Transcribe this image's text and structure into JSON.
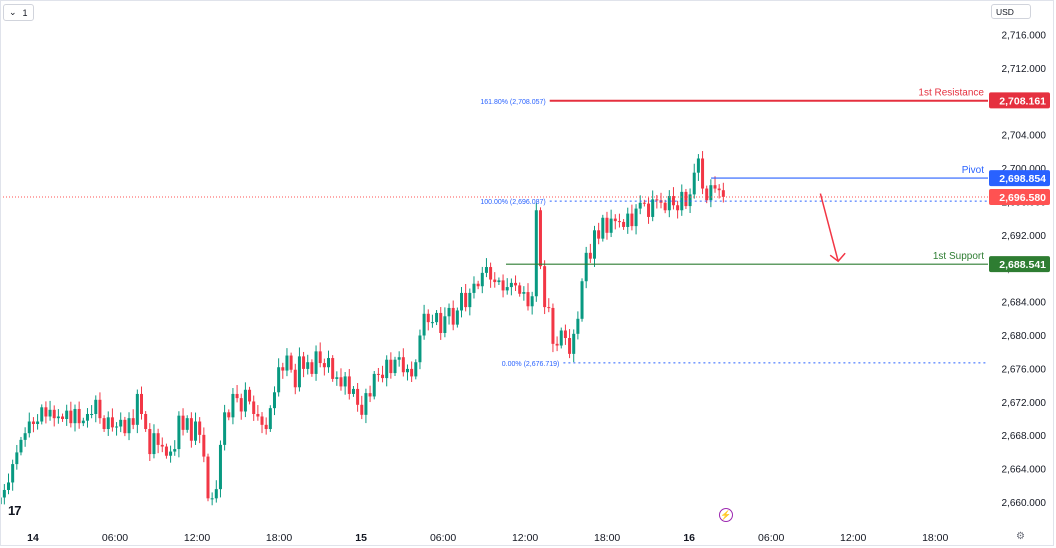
{
  "header": {
    "interval_label": "1",
    "currency": "USD"
  },
  "colors": {
    "up": "#089981",
    "down": "#f23645",
    "resistance": "#e5303f",
    "pivot": "#2962ff",
    "support": "#2e7d32",
    "last_price": "#ff5252",
    "fib": "#2962ff",
    "axis_text": "#131722",
    "arrow": "#f23645"
  },
  "icons": {
    "chevron": "chevron-down-icon",
    "logo": "tradingview-logo-icon",
    "bolt": "lightning-icon",
    "settings": "gear-icon"
  },
  "footer": {
    "logo_text": "17"
  },
  "chart_data": {
    "type": "candlestick",
    "title": "",
    "grid": false,
    "ylim": [
      2658.0,
      2718.8
    ],
    "y_ticks": [
      "2,660.000",
      "2,664.000",
      "2,668.000",
      "2,672.000",
      "2,676.000",
      "2,680.000",
      "2,684.000",
      "2,688.000",
      "2,692.000",
      "2,696.000",
      "2,700.000",
      "2,704.000",
      "2,708.000",
      "2,712.000",
      "2,716.000"
    ],
    "y_tick_values": [
      2660,
      2664,
      2668,
      2672,
      2676,
      2680,
      2684,
      2688,
      2692,
      2696,
      2700,
      2704,
      2708,
      2712,
      2716
    ],
    "x_ticks": [
      {
        "label": "14",
        "bold": true,
        "hours": 0
      },
      {
        "label": "06:00",
        "bold": false,
        "hours": 6
      },
      {
        "label": "12:00",
        "bold": false,
        "hours": 12
      },
      {
        "label": "18:00",
        "bold": false,
        "hours": 18
      },
      {
        "label": "15",
        "bold": true,
        "hours": 24
      },
      {
        "label": "06:00",
        "bold": false,
        "hours": 30
      },
      {
        "label": "12:00",
        "bold": false,
        "hours": 36
      },
      {
        "label": "18:00",
        "bold": false,
        "hours": 42
      },
      {
        "label": "16",
        "bold": true,
        "hours": 48
      },
      {
        "label": "06:00",
        "bold": false,
        "hours": 54
      },
      {
        "label": "12:00",
        "bold": false,
        "hours": 60
      },
      {
        "label": "18:00",
        "bold": false,
        "hours": 66
      }
    ],
    "levels": [
      {
        "name": "1st Resistance",
        "price": 2708.161,
        "price_label": "2,708.161",
        "color_key": "resistance"
      },
      {
        "name": "Pivot",
        "price": 2698.854,
        "price_label": "2,698.854",
        "color_key": "pivot"
      },
      {
        "name": "1st Support",
        "price": 2688.541,
        "price_label": "2,688.541",
        "color_key": "support"
      }
    ],
    "last_price": {
      "price": 2696.58,
      "price_label": "2,696.580"
    },
    "fib_levels": [
      {
        "label": "161.80% (2,708.057)",
        "price": 2708.057
      },
      {
        "label": "100.00% (2,696.087)",
        "price": 2696.087
      },
      {
        "label": "0.00% (2,676.719)",
        "price": 2676.719
      }
    ],
    "projection": {
      "from_price": 2697.0,
      "to_price": 2688.9,
      "direction": "down"
    },
    "candles_close": [
      2660.6,
      2661.5,
      2662.4,
      2664.6,
      2666.0,
      2667.5,
      2668.3,
      2669.7,
      2669.4,
      2669.7,
      2671.4,
      2670.3,
      2671.1,
      2670.1,
      2670.3,
      2670.0,
      2671.0,
      2669.5,
      2671.2,
      2669.5,
      2669.8,
      2670.6,
      2670.6,
      2672.3,
      2670.1,
      2668.8,
      2670.2,
      2669.0,
      2669.1,
      2669.9,
      2668.3,
      2670.1,
      2669.3,
      2673.0,
      2670.6,
      2668.8,
      2665.8,
      2668.3,
      2666.9,
      2666.7,
      2665.6,
      2666.1,
      2666.4,
      2670.4,
      2668.7,
      2670.1,
      2667.4,
      2669.7,
      2668.1,
      2665.5,
      2660.5,
      2660.5,
      2661.6,
      2666.9,
      2670.8,
      2670.2,
      2673.0,
      2672.5,
      2670.9,
      2673.5,
      2672.1,
      2670.6,
      2670.3,
      2669.3,
      2668.8,
      2671.3,
      2673.2,
      2676.2,
      2675.8,
      2677.6,
      2675.9,
      2673.8,
      2677.5,
      2676.0,
      2676.8,
      2675.4,
      2678.1,
      2676.7,
      2676.2,
      2677.3,
      2674.8,
      2675.0,
      2673.9,
      2675.1,
      2673.0,
      2673.6,
      2671.7,
      2670.5,
      2673.1,
      2672.7,
      2675.4,
      2675.3,
      2674.9,
      2677.1,
      2675.5,
      2677.1,
      2677.4,
      2675.6,
      2676.0,
      2675.1,
      2676.8,
      2680.0,
      2682.6,
      2681.6,
      2681.6,
      2682.7,
      2680.3,
      2682.3,
      2683.3,
      2681.3,
      2683.0,
      2685.1,
      2683.4,
      2685.1,
      2686.2,
      2685.9,
      2687.5,
      2688.2,
      2686.7,
      2686.4,
      2686.6,
      2685.4,
      2685.8,
      2686.3,
      2686.0,
      2685.0,
      2685.2,
      2683.5,
      2684.7,
      2695.0,
      2688.3,
      2683.4,
      2683.3,
      2679.0,
      2678.8,
      2680.6,
      2679.7,
      2677.8,
      2680.2,
      2682.0,
      2686.5,
      2689.9,
      2689.2,
      2692.6,
      2691.6,
      2694.1,
      2692.3,
      2694.0,
      2693.7,
      2693.6,
      2693.0,
      2694.6,
      2693.1,
      2695.2,
      2695.9,
      2695.8,
      2694.2,
      2696.3,
      2696.2,
      2695.9,
      2695.0,
      2696.7,
      2695.6,
      2695.0,
      2697.2,
      2695.5,
      2696.9,
      2699.5,
      2701.2,
      2697.6,
      2696.2,
      2698.0,
      2697.6,
      2697.4,
      2696.6
    ]
  }
}
